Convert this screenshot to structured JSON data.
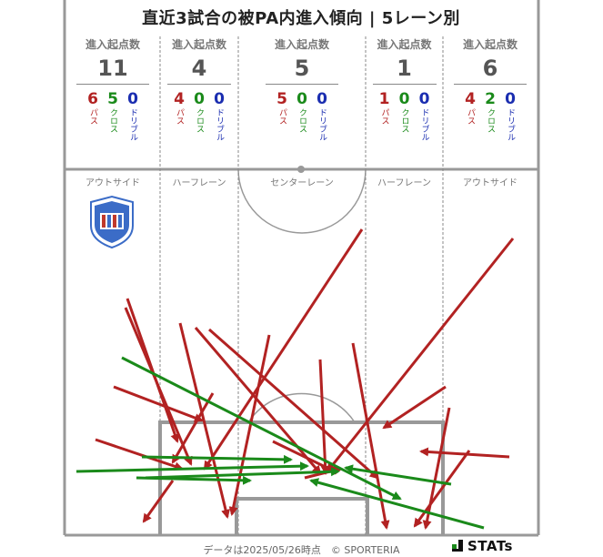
{
  "title": "直近3試合の被PA内進入傾向 | 5レーン別",
  "lanes": [
    {
      "header": "進入起点数",
      "total": "11",
      "pass": "6",
      "cross": "5",
      "dribble": "0",
      "name": "アウトサイド"
    },
    {
      "header": "進入起点数",
      "total": "4",
      "pass": "4",
      "cross": "0",
      "dribble": "0",
      "name": "ハーフレーン"
    },
    {
      "header": "進入起点数",
      "total": "5",
      "pass": "5",
      "cross": "0",
      "dribble": "0",
      "name": "センターレーン"
    },
    {
      "header": "進入起点数",
      "total": "1",
      "pass": "1",
      "cross": "0",
      "dribble": "0",
      "name": "ハーフレーン"
    },
    {
      "header": "進入起点数",
      "total": "6",
      "pass": "4",
      "cross": "2",
      "dribble": "0",
      "name": "アウトサイド"
    }
  ],
  "labels": {
    "pass": "パス",
    "cross": "クロス",
    "dribble": "ドリブル"
  },
  "colors": {
    "pass": "#b22222",
    "cross": "#1a8a1a",
    "dribble": "#1a2db0",
    "pitch": "#999999"
  },
  "footer": {
    "date": "データは2025/05/26時点　© SPORTERIA",
    "brand": "STATs"
  },
  "team_logo": {
    "icon": "club-crest-icon"
  }
}
